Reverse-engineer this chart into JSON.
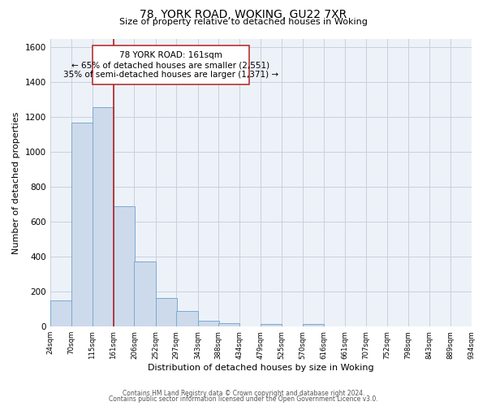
{
  "title_line1": "78, YORK ROAD, WOKING, GU22 7XR",
  "title_line2": "Size of property relative to detached houses in Woking",
  "xlabel": "Distribution of detached houses by size in Woking",
  "ylabel": "Number of detached properties",
  "bin_edges": [
    24,
    70,
    115,
    161,
    206,
    252,
    297,
    343,
    388,
    434,
    479,
    525,
    570,
    616,
    661,
    707,
    752,
    798,
    843,
    889,
    934
  ],
  "bar_heights": [
    150,
    1170,
    1255,
    690,
    375,
    165,
    90,
    35,
    20,
    0,
    15,
    0,
    15,
    0,
    0,
    0,
    0,
    0,
    0,
    0
  ],
  "bar_color": "#cddaeb",
  "bar_edge_color": "#7aaad0",
  "property_line_x": 161,
  "property_line_color": "#b22222",
  "ann_text_line1": "78 YORK ROAD: 161sqm",
  "ann_text_line2": "← 65% of detached houses are smaller (2,551)",
  "ann_text_line3": "35% of semi-detached houses are larger (1,371) →",
  "ylim": [
    0,
    1650
  ],
  "yticks": [
    0,
    200,
    400,
    600,
    800,
    1000,
    1200,
    1400,
    1600
  ],
  "background_color": "#ffffff",
  "plot_bg_color": "#edf2f9",
  "grid_color": "#c8d0dc",
  "footnote1": "Contains HM Land Registry data © Crown copyright and database right 2024.",
  "footnote2": "Contains public sector information licensed under the Open Government Licence v3.0.",
  "tick_labels": [
    "24sqm",
    "70sqm",
    "115sqm",
    "161sqm",
    "206sqm",
    "252sqm",
    "297sqm",
    "343sqm",
    "388sqm",
    "434sqm",
    "479sqm",
    "525sqm",
    "570sqm",
    "616sqm",
    "661sqm",
    "707sqm",
    "752sqm",
    "798sqm",
    "843sqm",
    "889sqm",
    "934sqm"
  ]
}
